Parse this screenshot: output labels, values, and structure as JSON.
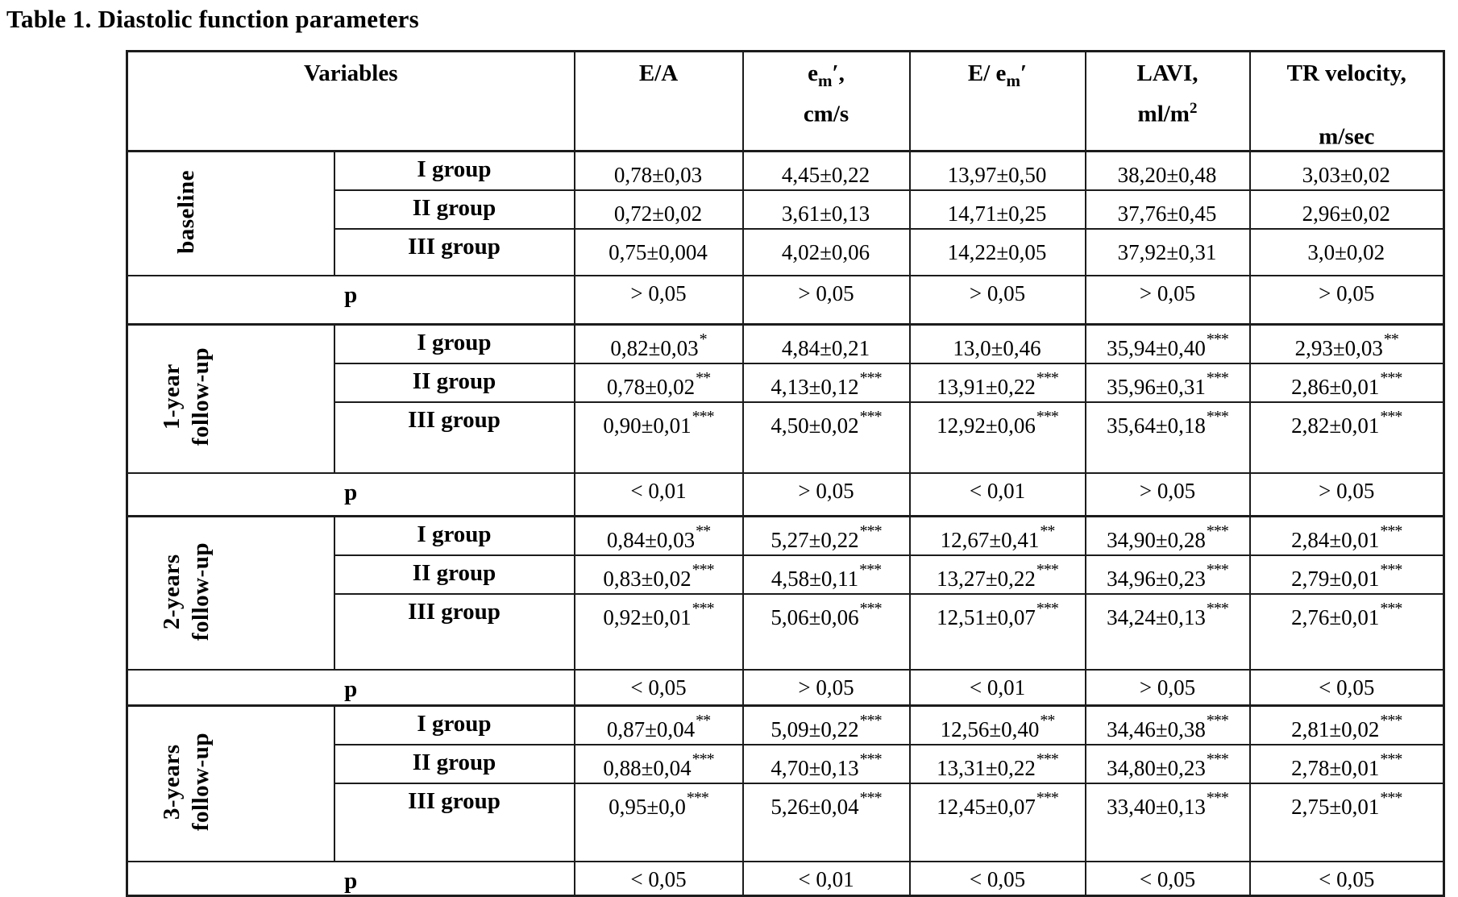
{
  "title": "Table 1. Diastolic function parameters",
  "colors": {
    "text": "#000000",
    "border": "#1c1c1c",
    "background": "#ffffff"
  },
  "table": {
    "variables_label": "Variables",
    "p_label": "p",
    "columns": [
      {
        "key": "ea",
        "line1": {
          "pre": "E/A"
        }
      },
      {
        "key": "em",
        "line1": {
          "pre": "e",
          "sub": "m",
          "post": "′,"
        },
        "line2": {
          "text": "cm/s"
        }
      },
      {
        "key": "e-over-em",
        "line1": {
          "pre": "E/ e",
          "sub": "m",
          "post": "′"
        }
      },
      {
        "key": "lavi",
        "line1": {
          "pre": "LAVI,"
        },
        "line2": {
          "text": "ml/m",
          "sup": "2"
        }
      },
      {
        "key": "tr-velocity",
        "line1": {
          "pre": "TR velocity,"
        },
        "line2": {
          "text": "m/sec"
        }
      }
    ],
    "sections": [
      {
        "key": "baseline",
        "label_lines": [
          "baseline"
        ],
        "rows": [
          {
            "group": "I group",
            "cells": [
              {
                "v": "0,78±0,03"
              },
              {
                "v": "4,45±0,22"
              },
              {
                "v": "13,97±0,50"
              },
              {
                "v": "38,20±0,48"
              },
              {
                "v": "3,03±0,02"
              }
            ]
          },
          {
            "group": "II group",
            "cells": [
              {
                "v": "0,72±0,02"
              },
              {
                "v": "3,61±0,13"
              },
              {
                "v": "14,71±0,25"
              },
              {
                "v": "37,76±0,45"
              },
              {
                "v": "2,96±0,02"
              }
            ]
          },
          {
            "group": "III group",
            "cells": [
              {
                "v": "0,75±0,004"
              },
              {
                "v": "4,02±0,06"
              },
              {
                "v": "14,22±0,05"
              },
              {
                "v": "37,92±0,31"
              },
              {
                "v": "3,0±0,02"
              }
            ]
          }
        ],
        "p": [
          "> 0,05",
          "> 0,05",
          "> 0,05",
          "> 0,05",
          "> 0,05"
        ]
      },
      {
        "key": "followup-1y",
        "label_lines": [
          "1-year",
          "follow-up"
        ],
        "rows": [
          {
            "group": "I group",
            "cells": [
              {
                "v": "0,82±0,03",
                "s": "*"
              },
              {
                "v": "4,84±0,21"
              },
              {
                "v": "13,0±0,46"
              },
              {
                "v": "35,94±0,40",
                "s": "***"
              },
              {
                "v": "2,93±0,03",
                "s": "**"
              }
            ]
          },
          {
            "group": "II group",
            "cells": [
              {
                "v": "0,78±0,02",
                "s": "**"
              },
              {
                "v": "4,13±0,12",
                "s": "***"
              },
              {
                "v": "13,91±0,22",
                "s": "***"
              },
              {
                "v": "35,96±0,31",
                "s": "***"
              },
              {
                "v": "2,86±0,01",
                "s": "***"
              }
            ]
          },
          {
            "group": "III group",
            "cells": [
              {
                "v": "0,90±0,01",
                "s": "***"
              },
              {
                "v": "4,50±0,02",
                "s": "***"
              },
              {
                "v": "12,92±0,06",
                "s": "***"
              },
              {
                "v": "35,64±0,18",
                "s": "***"
              },
              {
                "v": "2,82±0,01",
                "s": "***"
              }
            ]
          }
        ],
        "p": [
          "< 0,01",
          "> 0,05",
          "< 0,01",
          "> 0,05",
          "> 0,05"
        ]
      },
      {
        "key": "followup-2y",
        "label_lines": [
          "2-years",
          "follow-up"
        ],
        "rows": [
          {
            "group": "I group",
            "cells": [
              {
                "v": "0,84±0,03",
                "s": "**"
              },
              {
                "v": "5,27±0,22",
                "s": "***"
              },
              {
                "v": "12,67±0,41",
                "s": "**"
              },
              {
                "v": "34,90±0,28",
                "s": "***"
              },
              {
                "v": "2,84±0,01",
                "s": "***"
              }
            ]
          },
          {
            "group": "II group",
            "cells": [
              {
                "v": "0,83±0,02",
                "s": "***"
              },
              {
                "v": "4,58±0,11",
                "s": "***"
              },
              {
                "v": "13,27±0,22",
                "s": "***"
              },
              {
                "v": "34,96±0,23",
                "s": "***"
              },
              {
                "v": "2,79±0,01",
                "s": "***"
              }
            ]
          },
          {
            "group": "III group",
            "cells": [
              {
                "v": "0,92±0,01",
                "s": "***"
              },
              {
                "v": "5,06±0,06",
                "s": "***"
              },
              {
                "v": "12,51±0,07",
                "s": "***"
              },
              {
                "v": "34,24±0,13",
                "s": "***"
              },
              {
                "v": "2,76±0,01",
                "s": "***"
              }
            ]
          }
        ],
        "p": [
          "< 0,05",
          "> 0,05",
          "< 0,01",
          "> 0,05",
          "< 0,05"
        ]
      },
      {
        "key": "followup-3y",
        "label_lines": [
          "3-years",
          "follow-up"
        ],
        "rows": [
          {
            "group": "I group",
            "cells": [
              {
                "v": "0,87±0,04",
                "s": "**"
              },
              {
                "v": "5,09±0,22",
                "s": "***"
              },
              {
                "v": "12,56±0,40",
                "s": "**"
              },
              {
                "v": "34,46±0,38",
                "s": "***"
              },
              {
                "v": "2,81±0,02",
                "s": "***"
              }
            ]
          },
          {
            "group": "II group",
            "cells": [
              {
                "v": "0,88±0,04",
                "s": "***"
              },
              {
                "v": "4,70±0,13",
                "s": "***"
              },
              {
                "v": "13,31±0,22",
                "s": "***"
              },
              {
                "v": "34,80±0,23",
                "s": "***"
              },
              {
                "v": "2,78±0,01",
                "s": "***"
              }
            ]
          },
          {
            "group": "III group",
            "cells": [
              {
                "v": "0,95±0,0",
                "s": "***"
              },
              {
                "v": "5,26±0,04",
                "s": "***"
              },
              {
                "v": "12,45±0,07",
                "s": "***"
              },
              {
                "v": "33,40±0,13",
                "s": "***"
              },
              {
                "v": "2,75±0,01",
                "s": "***"
              }
            ]
          }
        ],
        "p": [
          "< 0,05",
          "< 0,01",
          "< 0,05",
          "< 0,05",
          "< 0,05"
        ]
      }
    ]
  }
}
